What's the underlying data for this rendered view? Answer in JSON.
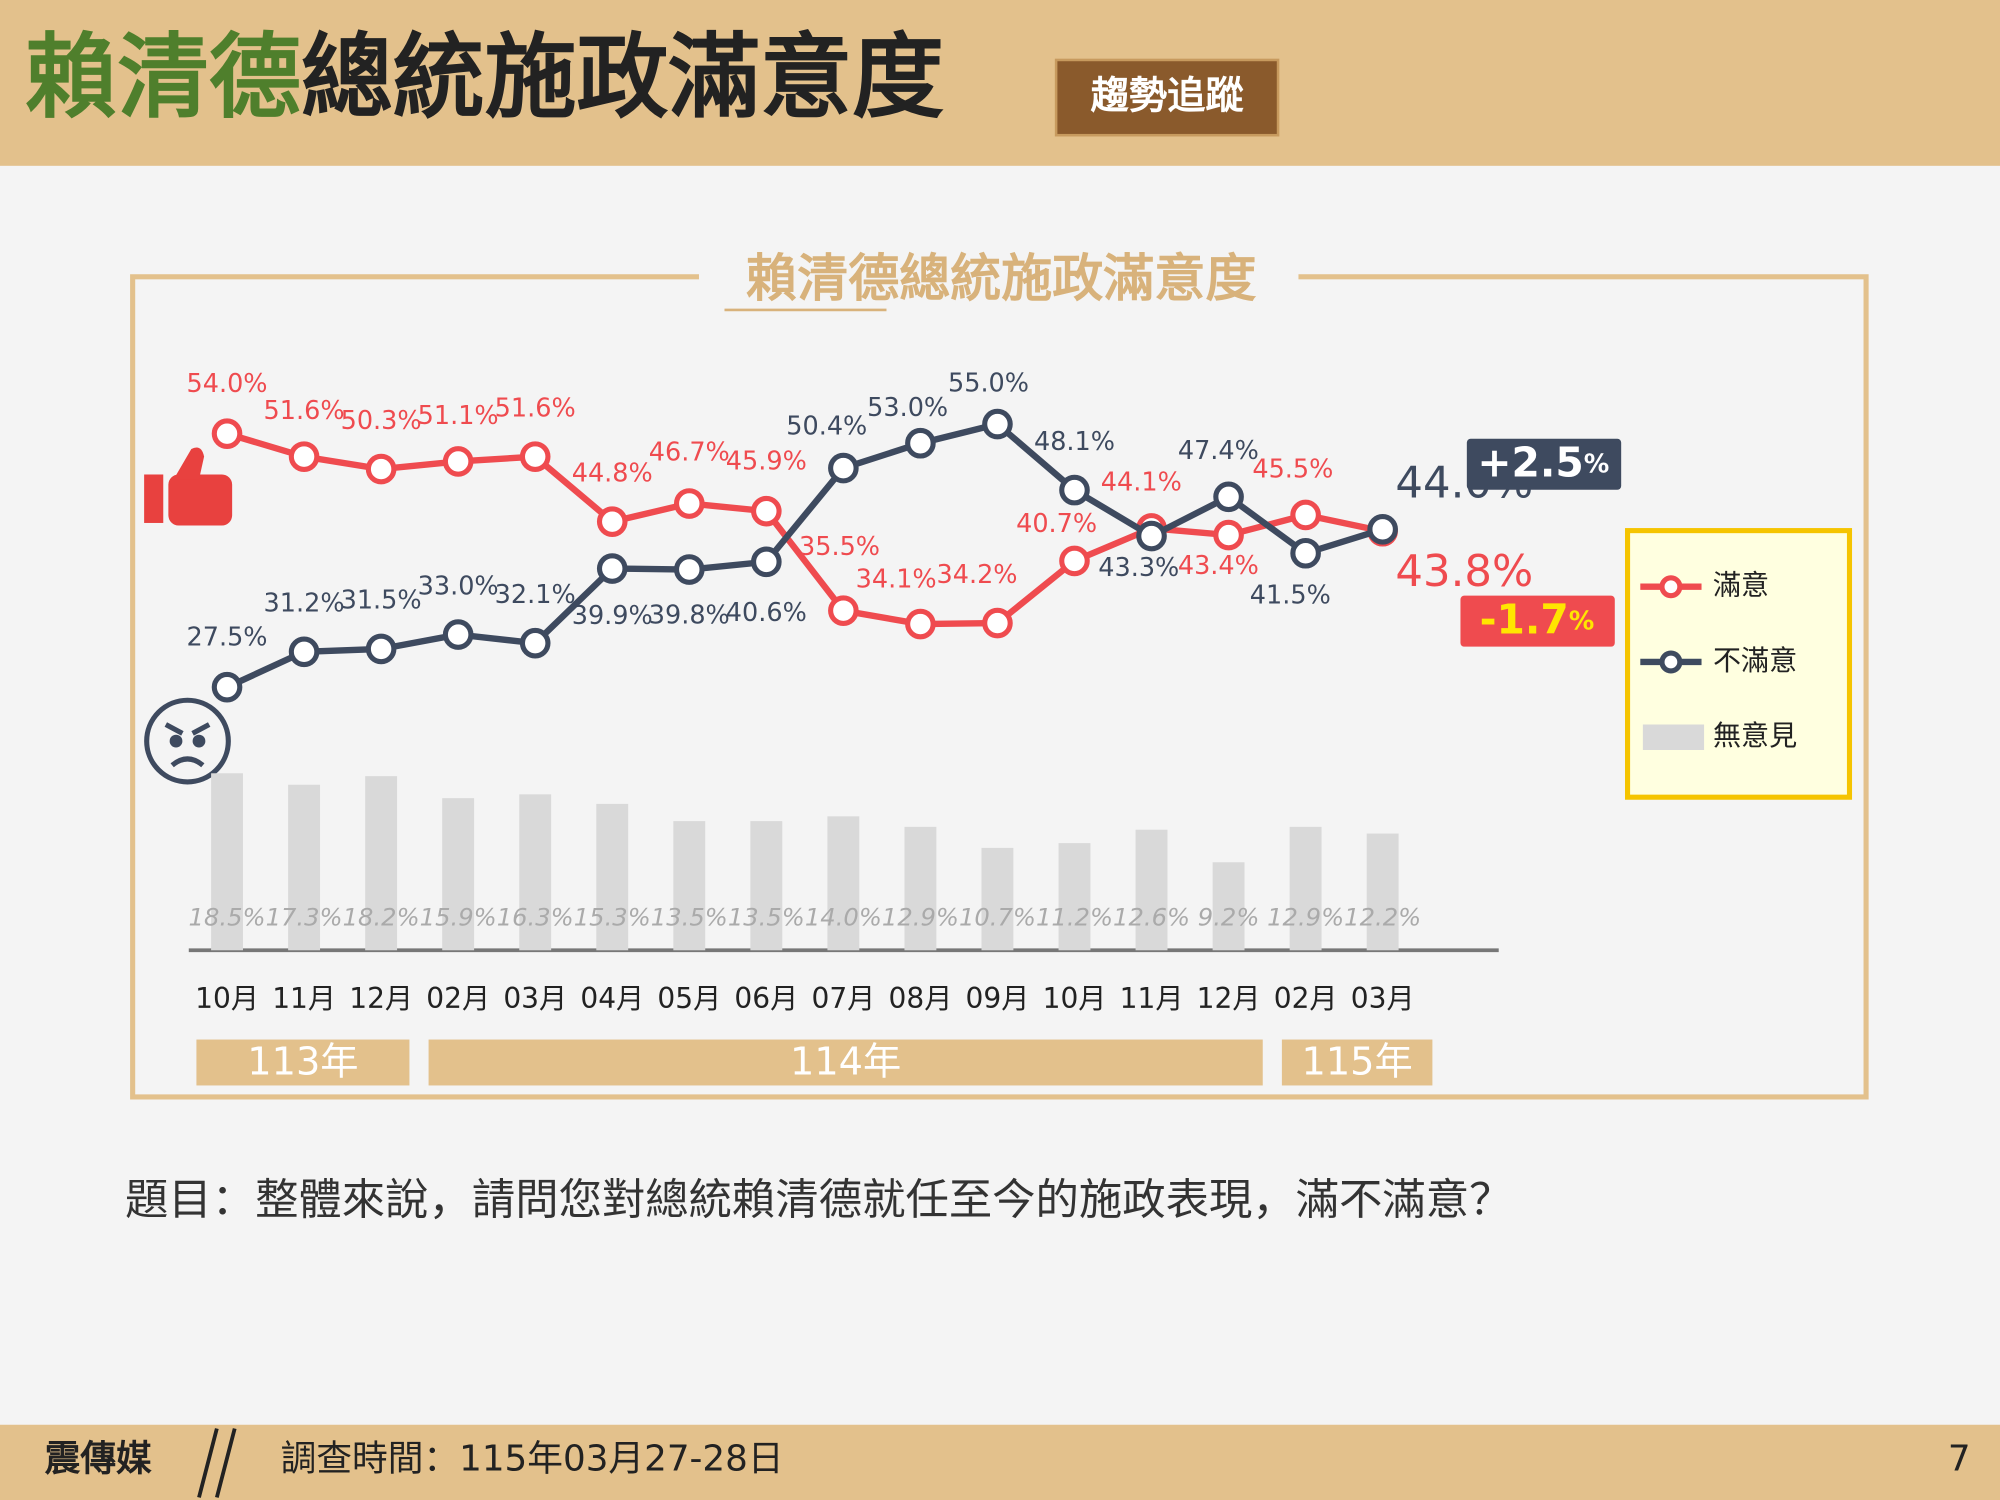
{
  "header": {
    "title_highlight": "賴清德",
    "title_rest": "總統施政滿意度",
    "badge": "趨勢追蹤"
  },
  "chart_data": {
    "type": "line",
    "title": "賴清德總統施政滿意度",
    "categories": [
      "10月",
      "11月",
      "12月",
      "02月",
      "03月",
      "04月",
      "05月",
      "06月",
      "07月",
      "08月",
      "09月",
      "10月",
      "11月",
      "12月",
      "02月",
      "03月"
    ],
    "year_labels": [
      "113年",
      "114年",
      "115年"
    ],
    "series": [
      {
        "name": "滿意",
        "color": "#ef4b4f",
        "values": [
          54.0,
          51.6,
          50.3,
          51.1,
          51.6,
          44.8,
          46.7,
          45.9,
          35.5,
          34.1,
          34.2,
          40.7,
          44.1,
          43.4,
          45.5,
          43.8
        ],
        "value_labels": [
          "54.0%",
          "51.6%",
          "50.3%",
          "51.1%",
          "51.6%",
          "44.8%",
          "46.7%",
          "45.9%",
          "35.5%",
          "34.1%",
          "34.2%",
          "40.7%",
          "44.1%",
          "43.4%",
          "45.5%",
          "43.8%"
        ],
        "change": "-1.7",
        "change_unit": "%"
      },
      {
        "name": "不滿意",
        "color": "#3e4a5f",
        "values": [
          27.5,
          31.2,
          31.5,
          33.0,
          32.1,
          39.9,
          39.8,
          40.6,
          50.4,
          53.0,
          55.0,
          48.1,
          43.3,
          47.4,
          41.5,
          44.0
        ],
        "value_labels": [
          "27.5%",
          "31.2%",
          "31.5%",
          "33.0%",
          "32.1%",
          "39.9%",
          "39.8%",
          "40.6%",
          "50.4%",
          "53.0%",
          "55.0%",
          "48.1%",
          "43.3%",
          "47.4%",
          "41.5%",
          "44.0%"
        ],
        "change": "+2.5",
        "change_unit": "%"
      },
      {
        "name": "無意見",
        "type": "bar",
        "color": "#d9d9d9",
        "values": [
          18.5,
          17.3,
          18.2,
          15.9,
          16.3,
          15.3,
          13.5,
          13.5,
          14.0,
          12.9,
          10.7,
          11.2,
          12.6,
          9.2,
          12.9,
          12.2
        ],
        "value_labels": [
          "18.5%",
          "17.3%",
          "18.2%",
          "15.9%",
          "16.3%",
          "15.3%",
          "13.5%",
          "13.5%",
          "14.0%",
          "12.9%",
          "10.7%",
          "11.2%",
          "12.6%",
          "9.2%",
          "12.9%",
          "12.2%"
        ]
      }
    ],
    "ylim": [
      0,
      60
    ],
    "legend": "right"
  },
  "question": "題目：整體來說，請問您對總統賴清德就任至今的施政表現，滿不滿意？",
  "footer": {
    "source": "震傳媒",
    "survey": "調查時間：115年03月27-28日",
    "page": "7"
  }
}
